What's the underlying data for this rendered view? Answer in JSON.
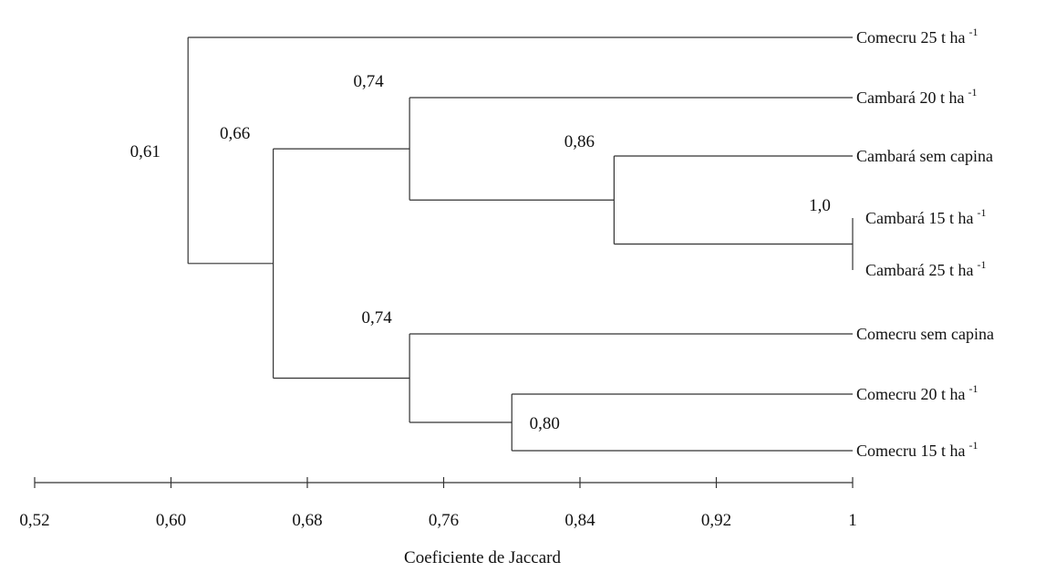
{
  "chart_data": {
    "type": "dendrogram",
    "xlabel": "Coeficiente de Jaccard",
    "xlim": [
      0.52,
      1.0
    ],
    "xticks": [
      {
        "value": 0.52,
        "label": "0,52"
      },
      {
        "value": 0.6,
        "label": "0,60"
      },
      {
        "value": 0.68,
        "label": "0,68"
      },
      {
        "value": 0.76,
        "label": "0,76"
      },
      {
        "value": 0.84,
        "label": "0,84"
      },
      {
        "value": 0.92,
        "label": "0,92"
      },
      {
        "value": 1.0,
        "label": "1"
      }
    ],
    "leaves": [
      {
        "name": "Comecru 25 t ha",
        "sup": "-1"
      },
      {
        "name": "Cambará 20 t ha",
        "sup": "-1"
      },
      {
        "name": "Cambará sem capina",
        "sup": ""
      },
      {
        "name": "Cambará 15 t ha",
        "sup": "-1"
      },
      {
        "name": "Cambará 25 t ha",
        "sup": "-1"
      },
      {
        "name": "Comecru sem capina",
        "sup": ""
      },
      {
        "name": "Comecru 20 t ha",
        "sup": "-1"
      },
      {
        "name": "Comecru 15 t ha",
        "sup": "-1"
      }
    ],
    "merges": [
      {
        "id": "n1",
        "left": 3,
        "right": 4,
        "similarity": 1.0,
        "label": "1,0"
      },
      {
        "id": "n2",
        "left": 2,
        "right": "n1",
        "similarity": 0.86,
        "label": "0,86"
      },
      {
        "id": "n3",
        "left": 1,
        "right": "n2",
        "similarity": 0.74,
        "label": "0,74"
      },
      {
        "id": "n4",
        "left": 6,
        "right": 7,
        "similarity": 0.8,
        "label": "0,80"
      },
      {
        "id": "n5",
        "left": 5,
        "right": "n4",
        "similarity": 0.74,
        "label": "0,74"
      },
      {
        "id": "n6",
        "left": "n3",
        "right": "n5",
        "similarity": 0.66,
        "label": "0,66"
      },
      {
        "id": "n7",
        "left": 0,
        "right": "n6",
        "similarity": 0.61,
        "label": "0,61"
      }
    ]
  }
}
